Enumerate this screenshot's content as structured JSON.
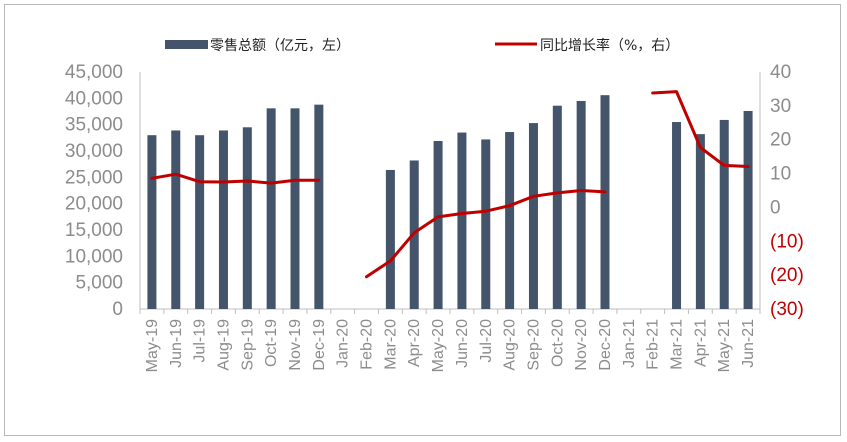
{
  "chart_data": {
    "type": "bar+line",
    "title": "",
    "categories": [
      "May-19",
      "Jun-19",
      "Jul-19",
      "Aug-19",
      "Sep-19",
      "Oct-19",
      "Nov-19",
      "Dec-19",
      "Jan-20",
      "Feb-20",
      "Mar-20",
      "Apr-20",
      "May-20",
      "Jun-20",
      "Jul-20",
      "Aug-20",
      "Sep-20",
      "Oct-20",
      "Nov-20",
      "Dec-20",
      "Jan-21",
      "Feb-21",
      "Mar-21",
      "Apr-21",
      "May-21",
      "Jun-21"
    ],
    "series": [
      {
        "name": "零售总额（亿元，左）",
        "type": "bar",
        "axis": "left",
        "color": "#44546a",
        "values": [
          33000,
          33900,
          33000,
          33900,
          34500,
          38100,
          38100,
          38800,
          null,
          null,
          26400,
          28200,
          31900,
          33500,
          32200,
          33600,
          35300,
          38600,
          39500,
          40600,
          null,
          null,
          35500,
          33200,
          35900,
          37600
        ]
      },
      {
        "name": "同比增长率（%，右）",
        "type": "line",
        "axis": "right",
        "color": "#c00000",
        "values": [
          8.6,
          9.8,
          7.6,
          7.5,
          7.8,
          7.2,
          8.0,
          8.0,
          null,
          -20.5,
          -15.8,
          -7.5,
          -2.8,
          -1.8,
          -1.1,
          0.5,
          3.3,
          4.3,
          5.0,
          4.6,
          null,
          33.8,
          34.2,
          17.7,
          12.4,
          12.1
        ]
      }
    ],
    "left_axis": {
      "min": 0,
      "max": 45000,
      "step": 5000,
      "tick_labels": [
        "0",
        "5,000",
        "10,000",
        "15,000",
        "20,000",
        "25,000",
        "30,000",
        "35,000",
        "40,000",
        "45,000"
      ]
    },
    "right_axis": {
      "min": -30,
      "max": 40,
      "step": 10,
      "tick_labels": [
        "(30)",
        "(20)",
        "(10)",
        "0",
        "10",
        "20",
        "30",
        "40"
      ]
    },
    "colors": {
      "bar": "#44546a",
      "line": "#c00000",
      "left_tick": "#8c8c8c",
      "right_tick_positive": "#8c8c8c",
      "right_tick_negative": "#c00000"
    },
    "legend": {
      "position": "top",
      "bar_label": "零售总额（亿元，左）",
      "line_label": "同比增长率（%，右）"
    }
  }
}
